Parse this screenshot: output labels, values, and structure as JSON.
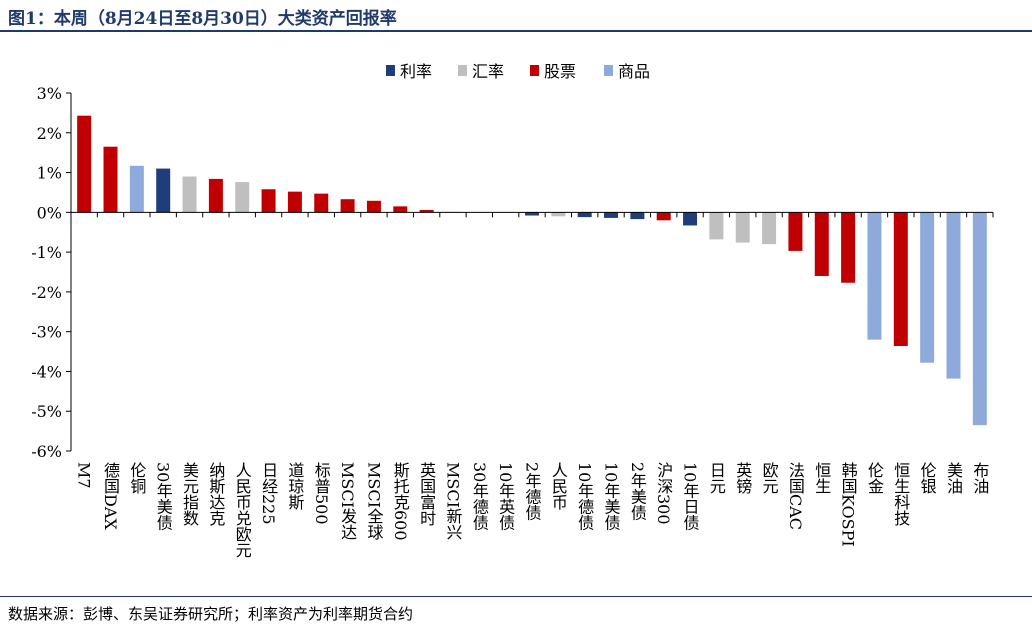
{
  "header": {
    "title": "图1：本周（8月24日至8月30日）大类资产回报率"
  },
  "footer": {
    "source": "数据来源：彭博、东吴证券研究所；利率资产为利率期货合约"
  },
  "colors": {
    "利率": "#1f3d7a",
    "汇率": "#bfbfbf",
    "股票": "#c00000",
    "商品": "#8eaadb"
  },
  "chart_data": {
    "type": "bar",
    "ylim": [
      -6,
      3
    ],
    "yticks": [
      3,
      2,
      1,
      0,
      -1,
      -2,
      -3,
      -4,
      -5,
      -6
    ],
    "ytick_labels": [
      "3%",
      "2%",
      "1%",
      "0%",
      "-1%",
      "-2%",
      "-3%",
      "-4%",
      "-5%",
      "-6%"
    ],
    "legend": [
      "利率",
      "汇率",
      "股票",
      "商品"
    ],
    "legend_position": "top-center",
    "grid": false,
    "bars": [
      {
        "label": "M7",
        "value": 2.43,
        "class": "股票"
      },
      {
        "label": "德国DAX",
        "value": 1.65,
        "class": "股票"
      },
      {
        "label": "伦铜",
        "value": 1.17,
        "class": "商品"
      },
      {
        "label": "30年美债",
        "value": 1.1,
        "class": "利率"
      },
      {
        "label": "美元指数",
        "value": 0.9,
        "class": "汇率"
      },
      {
        "label": "纳斯达克",
        "value": 0.84,
        "class": "股票"
      },
      {
        "label": "人民币兑欧元",
        "value": 0.76,
        "class": "汇率"
      },
      {
        "label": "日经225",
        "value": 0.58,
        "class": "股票"
      },
      {
        "label": "道琼斯",
        "value": 0.52,
        "class": "股票"
      },
      {
        "label": "标普500",
        "value": 0.47,
        "class": "股票"
      },
      {
        "label": "MSCI发达",
        "value": 0.33,
        "class": "股票"
      },
      {
        "label": "MSCI全球",
        "value": 0.29,
        "class": "股票"
      },
      {
        "label": "斯托克600",
        "value": 0.15,
        "class": "股票"
      },
      {
        "label": "英国富时",
        "value": 0.06,
        "class": "股票"
      },
      {
        "label": "MSCI新兴",
        "value": 0.01,
        "class": "股票"
      },
      {
        "label": "30年德债",
        "value": 0.0,
        "class": "利率"
      },
      {
        "label": "10年英债",
        "value": 0.0,
        "class": "利率"
      },
      {
        "label": "2年德债",
        "value": -0.08,
        "class": "利率"
      },
      {
        "label": "人民币",
        "value": -0.1,
        "class": "汇率"
      },
      {
        "label": "10年德债",
        "value": -0.12,
        "class": "利率"
      },
      {
        "label": "10年美债",
        "value": -0.14,
        "class": "利率"
      },
      {
        "label": "2年美债",
        "value": -0.17,
        "class": "利率"
      },
      {
        "label": "沪深300",
        "value": -0.2,
        "class": "股票"
      },
      {
        "label": "10年日债",
        "value": -0.33,
        "class": "利率"
      },
      {
        "label": "日元",
        "value": -0.68,
        "class": "汇率"
      },
      {
        "label": "英镑",
        "value": -0.76,
        "class": "汇率"
      },
      {
        "label": "欧元",
        "value": -0.8,
        "class": "汇率"
      },
      {
        "label": "法国CAC",
        "value": -0.97,
        "class": "股票"
      },
      {
        "label": "恒生",
        "value": -1.6,
        "class": "股票"
      },
      {
        "label": "韩国KOSPI",
        "value": -1.77,
        "class": "股票"
      },
      {
        "label": "伦金",
        "value": -3.2,
        "class": "商品"
      },
      {
        "label": "恒生科技",
        "value": -3.36,
        "class": "股票"
      },
      {
        "label": "伦银",
        "value": -3.78,
        "class": "商品"
      },
      {
        "label": "美油",
        "value": -4.18,
        "class": "商品"
      },
      {
        "label": "布油",
        "value": -5.35,
        "class": "商品"
      }
    ]
  }
}
